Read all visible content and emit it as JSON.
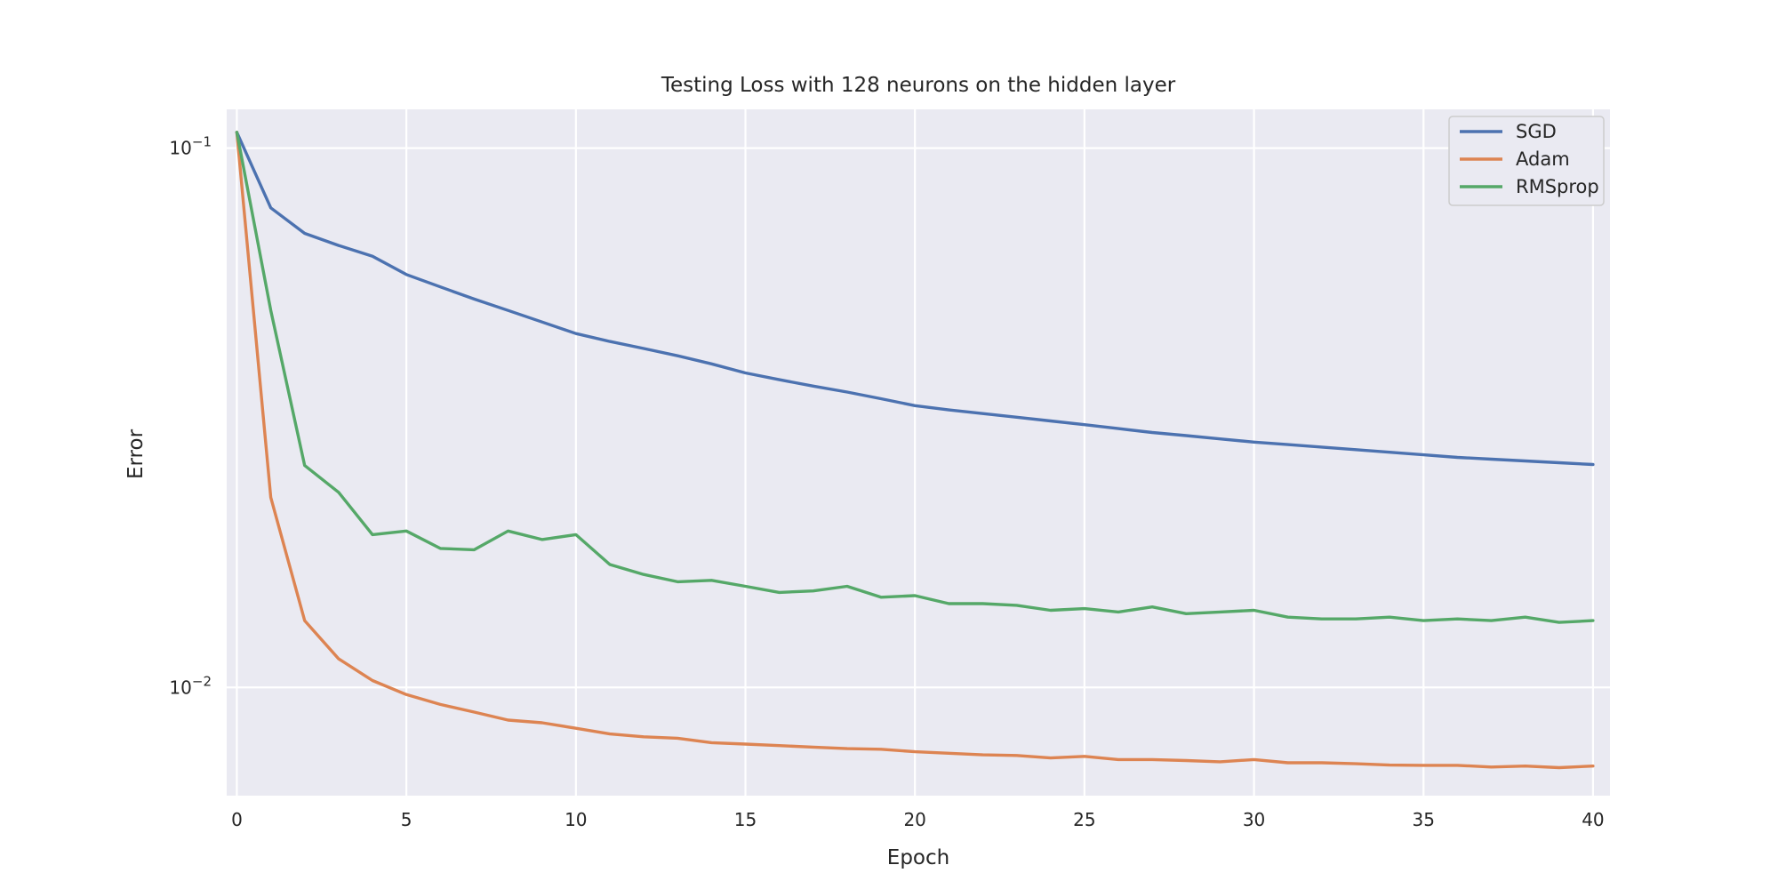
{
  "chart_data": {
    "type": "line",
    "title": "Testing Loss with 128 neurons on the hidden layer",
    "xlabel": "Epoch",
    "ylabel": "Error",
    "yscale": "log",
    "xlim": [
      -0.3,
      40.5
    ],
    "ylim": [
      0.0063,
      0.118
    ],
    "x_ticks": [
      0,
      5,
      10,
      15,
      20,
      25,
      30,
      35,
      40
    ],
    "y_ticks": [
      {
        "value": 0.1,
        "base": "10",
        "exp": "−1"
      },
      {
        "value": 0.01,
        "base": "10",
        "exp": "−2"
      }
    ],
    "grid": true,
    "legend_position": "top-right",
    "x": [
      0,
      1,
      2,
      3,
      4,
      5,
      6,
      7,
      8,
      9,
      10,
      11,
      12,
      13,
      14,
      15,
      16,
      17,
      18,
      19,
      20,
      21,
      22,
      23,
      24,
      25,
      26,
      27,
      28,
      29,
      30,
      31,
      32,
      33,
      34,
      35,
      36,
      37,
      38,
      39,
      40
    ],
    "series": [
      {
        "name": "SGD",
        "color": "#4c72b0",
        "values": [
          0.107,
          0.0775,
          0.0695,
          0.066,
          0.063,
          0.0583,
          0.0553,
          0.0525,
          0.05,
          0.0476,
          0.0453,
          0.0438,
          0.0425,
          0.0412,
          0.0398,
          0.0383,
          0.0372,
          0.0362,
          0.0353,
          0.0343,
          0.0333,
          0.0327,
          0.0322,
          0.0317,
          0.0312,
          0.0307,
          0.0302,
          0.0297,
          0.0293,
          0.0289,
          0.0285,
          0.0282,
          0.0279,
          0.0276,
          0.0273,
          0.027,
          0.0267,
          0.0265,
          0.0263,
          0.0261,
          0.0259
        ]
      },
      {
        "name": "Adam",
        "color": "#dd8452",
        "values": [
          0.107,
          0.0225,
          0.0133,
          0.0113,
          0.0103,
          0.0097,
          0.0093,
          0.009,
          0.0087,
          0.0086,
          0.0084,
          0.0082,
          0.0081,
          0.00805,
          0.0079,
          0.00785,
          0.0078,
          0.00775,
          0.0077,
          0.00768,
          0.0076,
          0.00755,
          0.0075,
          0.00748,
          0.0074,
          0.00745,
          0.00735,
          0.00735,
          0.00732,
          0.00728,
          0.00735,
          0.00725,
          0.00725,
          0.00722,
          0.00718,
          0.00717,
          0.00717,
          0.00712,
          0.00715,
          0.0071,
          0.00715
        ]
      },
      {
        "name": "RMSprop",
        "color": "#55a868",
        "values": [
          0.107,
          0.05,
          0.0258,
          0.023,
          0.0192,
          0.0195,
          0.0181,
          0.018,
          0.0195,
          0.0188,
          0.0192,
          0.0169,
          0.0162,
          0.0157,
          0.0158,
          0.0154,
          0.015,
          0.0151,
          0.0154,
          0.0147,
          0.0148,
          0.0143,
          0.0143,
          0.0142,
          0.0139,
          0.014,
          0.0138,
          0.0141,
          0.0137,
          0.0138,
          0.0139,
          0.0135,
          0.0134,
          0.0134,
          0.0135,
          0.0133,
          0.0134,
          0.0133,
          0.0135,
          0.0132,
          0.0133
        ]
      }
    ]
  }
}
